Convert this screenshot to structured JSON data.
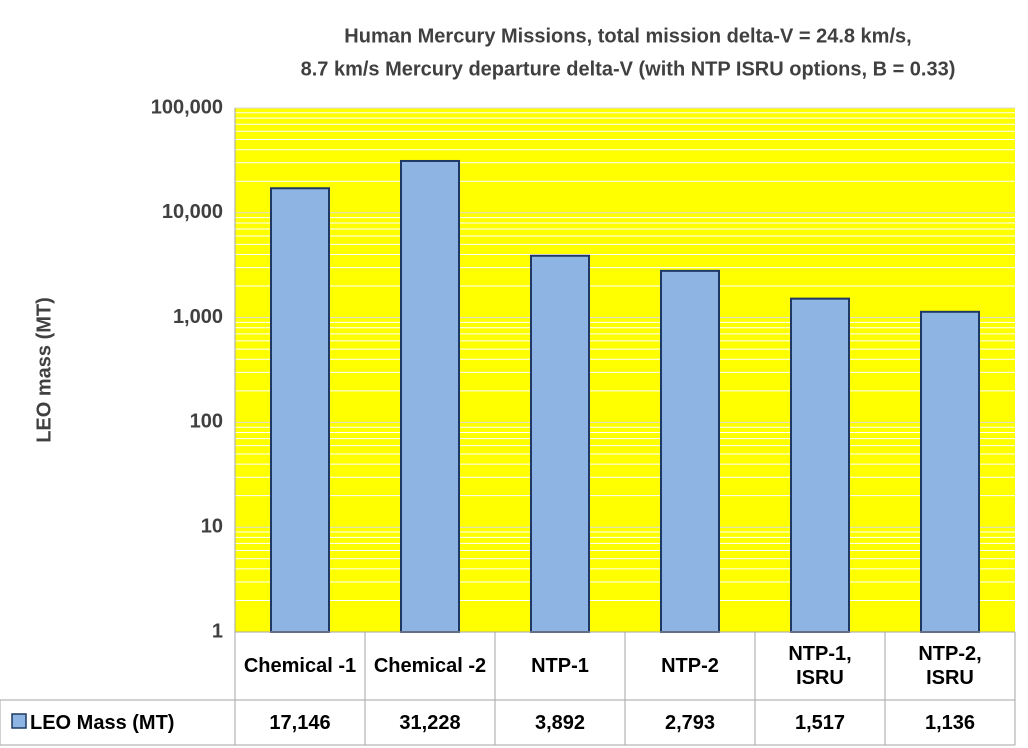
{
  "chart_data": {
    "type": "bar",
    "title": [
      "Human Mercury Missions, total mission delta-V = 24.8  km/s,",
      "8.7 km/s Mercury departure delta-V (with NTP ISRU options, B = 0.33)"
    ],
    "y_label": "LEO mass (MT)",
    "categories": [
      "Chemical -1",
      "Chemical -2",
      "NTP-1",
      "NTP-2",
      "NTP-1, ISRU",
      "NTP-2, ISRU"
    ],
    "series": [
      {
        "name": "LEO Mass (MT)",
        "color": "#8db4e2",
        "values": [
          17146,
          31228,
          3892,
          2793,
          1517,
          1136
        ],
        "value_labels": [
          "17,146",
          "31,228",
          "3,892",
          "2,793",
          "1,517",
          "1,136"
        ]
      }
    ],
    "log_scale": true,
    "ylim": [
      1,
      100000
    ],
    "yticks": [
      1,
      10,
      100,
      {
        "value": 1000,
        "label": "1,000"
      },
      {
        "value": 10000,
        "label": "10,000"
      },
      {
        "value": 100000,
        "label": "100,000"
      }
    ],
    "grid": true,
    "plot_background": "#ffff00"
  }
}
